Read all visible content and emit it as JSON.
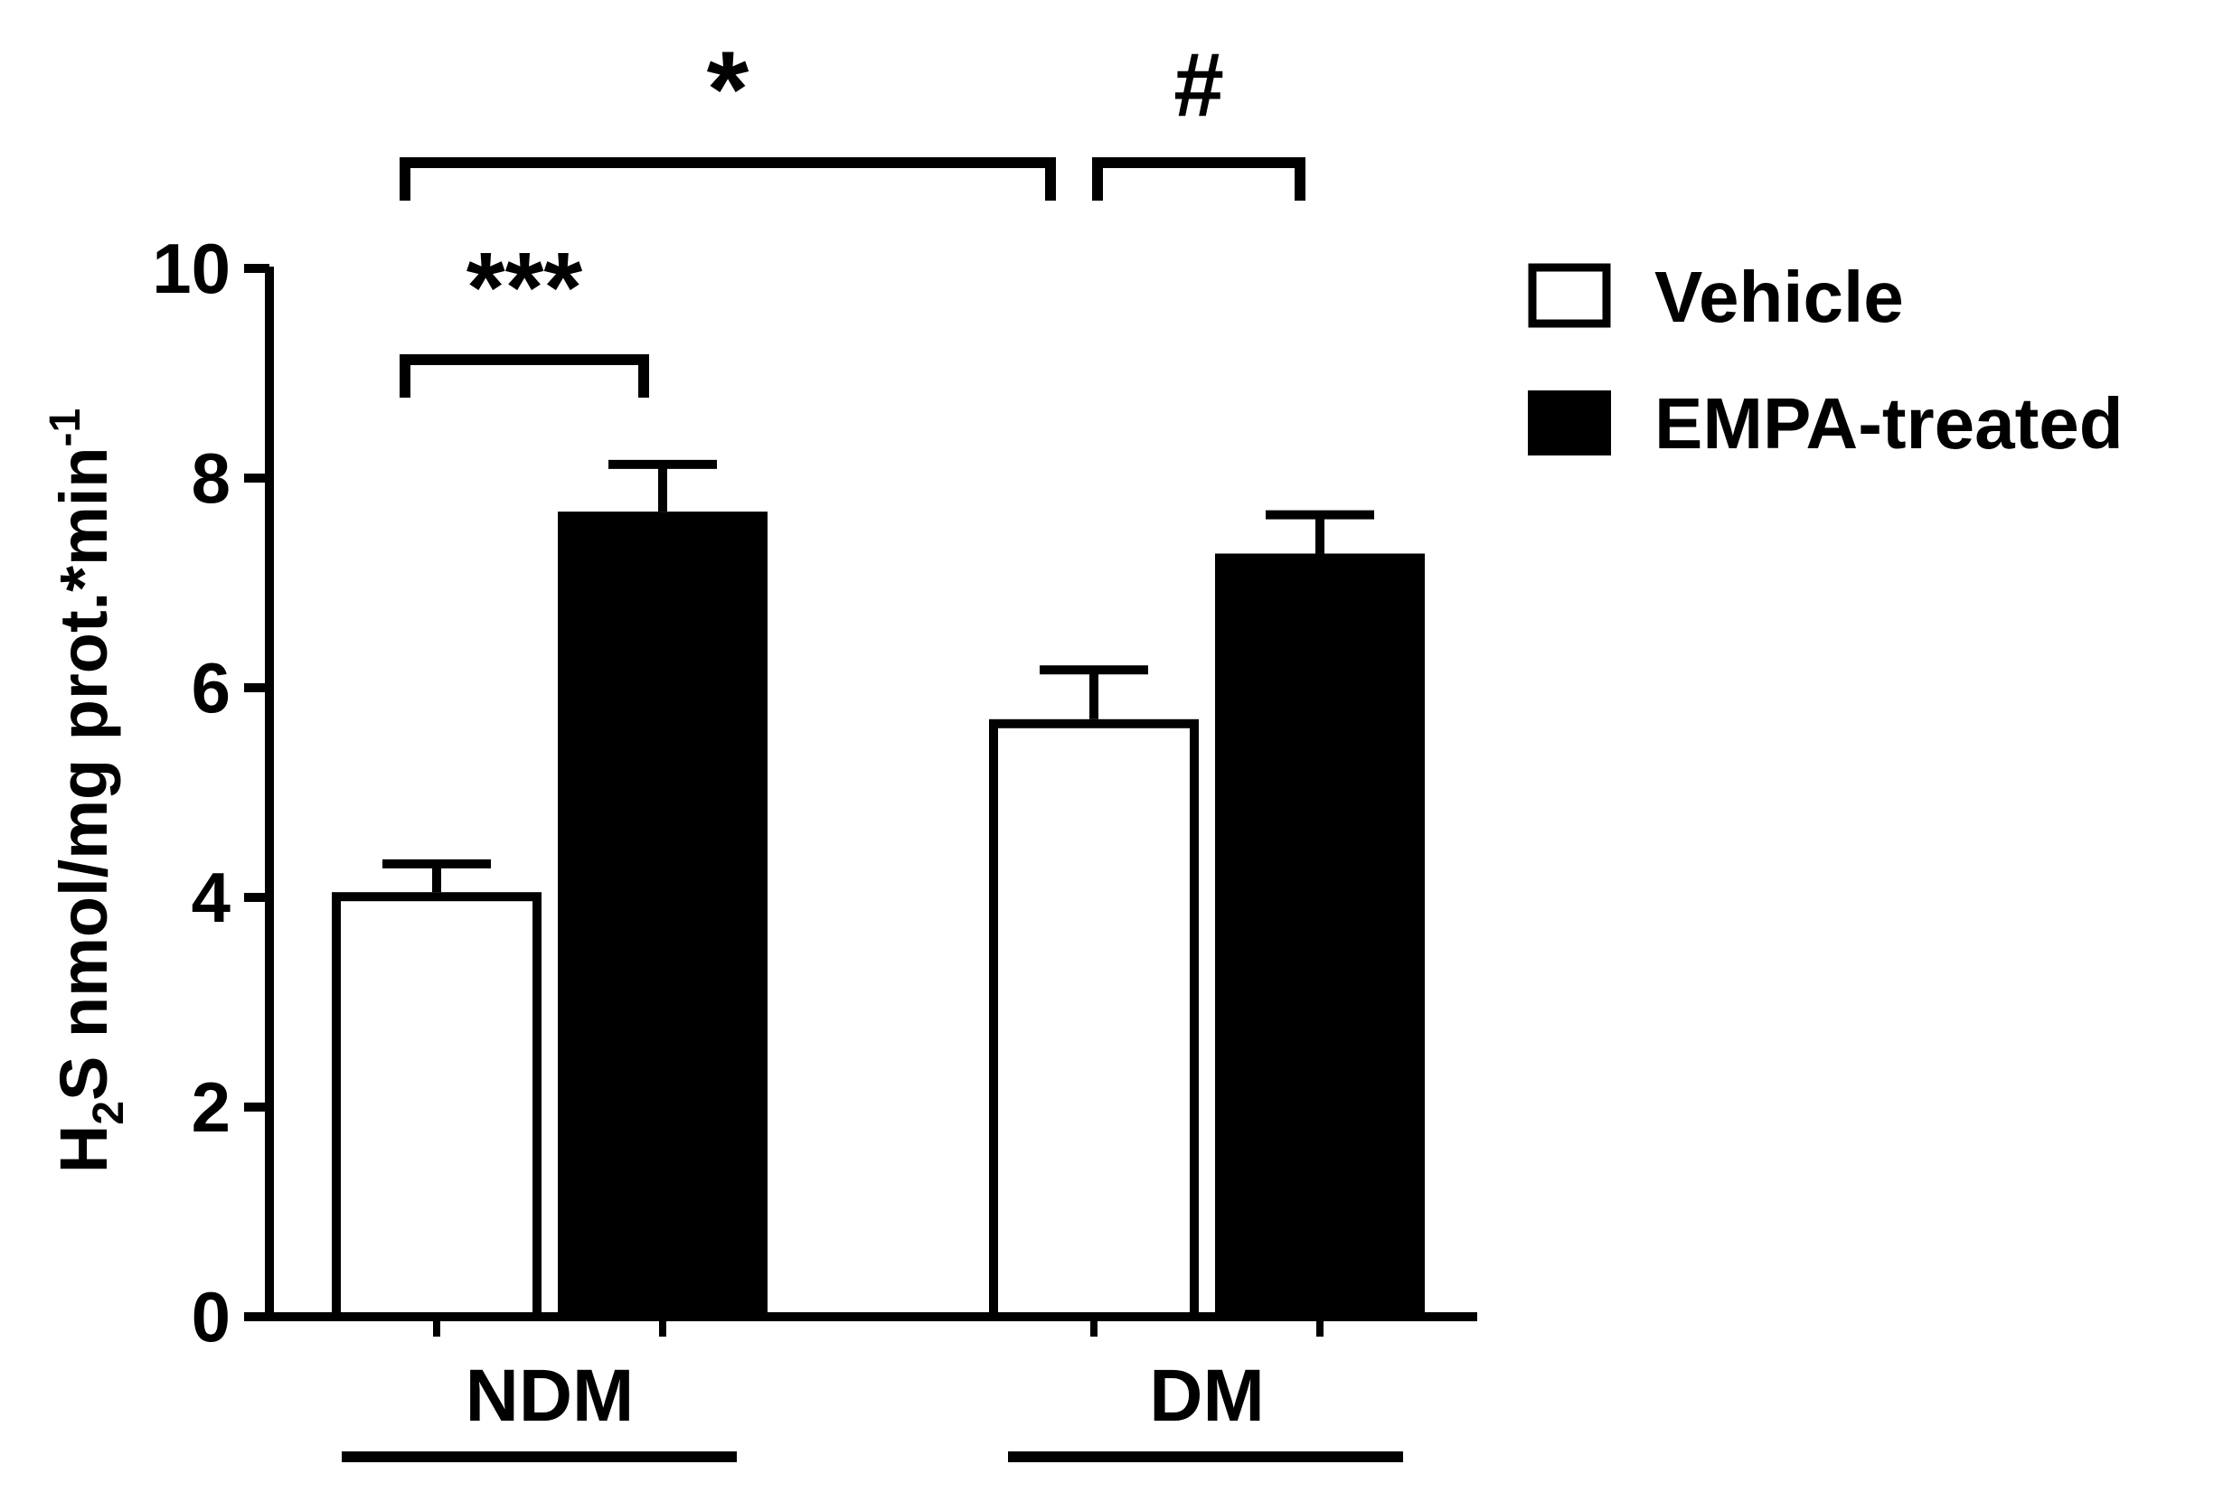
{
  "chart_data": {
    "type": "bar",
    "categories": [
      "NDM",
      "DM"
    ],
    "series": [
      {
        "name": "Vehicle",
        "values": [
          4.05,
          5.7
        ],
        "errors": [
          0.27,
          0.47
        ],
        "fill": "#ffffff"
      },
      {
        "name": "EMPA-treated",
        "values": [
          7.68,
          7.28
        ],
        "errors": [
          0.45,
          0.37
        ],
        "fill": "#000000"
      }
    ],
    "ylabel": "H2S nmol/mg prot.*min-1",
    "ylabel_parts": {
      "h": "H",
      "sub": "2",
      "mid": "S nmol/mg prot.*min",
      "sup": "-1"
    },
    "ylim": [
      0,
      10
    ],
    "yticks": [
      "0",
      "2",
      "4",
      "6",
      "8",
      "10"
    ],
    "legend_position": "top-right",
    "grid": false,
    "significance": [
      {
        "label": "***",
        "from": "NDM Vehicle",
        "to": "NDM EMPA-treated"
      },
      {
        "label": "*",
        "from": "NDM Vehicle",
        "to": "DM Vehicle"
      },
      {
        "label": "#",
        "from": "DM Vehicle",
        "to": "DM EMPA-treated"
      }
    ]
  }
}
